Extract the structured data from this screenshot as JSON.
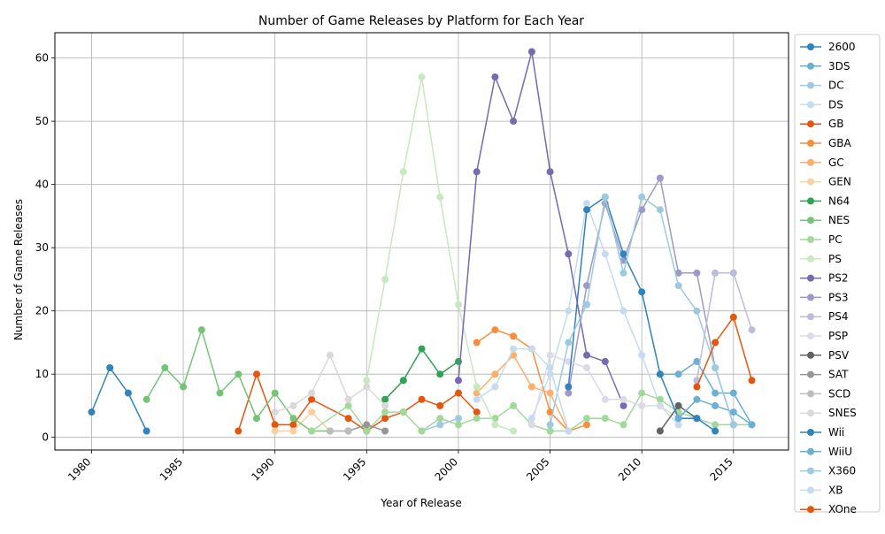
{
  "chart_data": {
    "type": "line",
    "title": "Number of Game Releases by Platform for Each Year",
    "xlabel": "Year of Release",
    "ylabel": "Number of Game Releases",
    "xlim": [
      1978,
      2018
    ],
    "ylim": [
      -2,
      64
    ],
    "xticks": [
      1980,
      1985,
      1990,
      1995,
      2000,
      2005,
      2010,
      2015
    ],
    "yticks": [
      0,
      10,
      20,
      30,
      40,
      50,
      60
    ],
    "grid": true,
    "legend_position": "outside-right",
    "series": [
      {
        "name": "2600",
        "color": "#3182bd",
        "points": [
          [
            1980,
            4
          ],
          [
            1981,
            11
          ],
          [
            1982,
            7
          ],
          [
            1983,
            1
          ]
        ]
      },
      {
        "name": "3DS",
        "color": "#6baed6",
        "points": [
          [
            2011,
            10
          ],
          [
            2012,
            10
          ],
          [
            2013,
            12
          ],
          [
            2014,
            7
          ],
          [
            2015,
            7
          ],
          [
            2016,
            2
          ]
        ]
      },
      {
        "name": "DC",
        "color": "#9ecae1",
        "points": [
          [
            1998,
            1
          ],
          [
            1999,
            2
          ],
          [
            2000,
            3
          ]
        ]
      },
      {
        "name": "DS",
        "color": "#c6dbef",
        "points": [
          [
            2004,
            3
          ],
          [
            2005,
            10
          ],
          [
            2006,
            20
          ],
          [
            2007,
            37
          ],
          [
            2008,
            29
          ],
          [
            2009,
            20
          ],
          [
            2010,
            13
          ],
          [
            2011,
            5
          ],
          [
            2012,
            2
          ]
        ]
      },
      {
        "name": "GB",
        "color": "#e6550d",
        "points": [
          [
            1988,
            1
          ],
          [
            1989,
            10
          ],
          [
            1990,
            2
          ],
          [
            1991,
            2
          ],
          [
            1992,
            6
          ],
          [
            1994,
            3
          ],
          [
            1995,
            1
          ],
          [
            1996,
            3
          ],
          [
            1997,
            4
          ],
          [
            1998,
            6
          ],
          [
            1999,
            5
          ],
          [
            2000,
            7
          ],
          [
            2001,
            4
          ]
        ]
      },
      {
        "name": "GBA",
        "color": "#fd8d3c",
        "points": [
          [
            2001,
            15
          ],
          [
            2002,
            17
          ],
          [
            2003,
            16
          ],
          [
            2004,
            14
          ],
          [
            2005,
            4
          ],
          [
            2006,
            1
          ],
          [
            2007,
            2
          ]
        ]
      },
      {
        "name": "GC",
        "color": "#fdae6b",
        "points": [
          [
            2001,
            7
          ],
          [
            2002,
            10
          ],
          [
            2003,
            13
          ],
          [
            2004,
            8
          ],
          [
            2005,
            7
          ],
          [
            2006,
            1
          ]
        ]
      },
      {
        "name": "GEN",
        "color": "#fdd0a2",
        "points": [
          [
            1990,
            1
          ],
          [
            1991,
            1
          ],
          [
            1992,
            4
          ],
          [
            1993,
            1
          ],
          [
            1994,
            1
          ]
        ]
      },
      {
        "name": "N64",
        "color": "#31a354",
        "points": [
          [
            1996,
            6
          ],
          [
            1997,
            9
          ],
          [
            1998,
            14
          ],
          [
            1999,
            10
          ],
          [
            2000,
            12
          ]
        ]
      },
      {
        "name": "NES",
        "color": "#74c476",
        "points": [
          [
            1983,
            6
          ],
          [
            1984,
            11
          ],
          [
            1985,
            8
          ],
          [
            1986,
            17
          ],
          [
            1987,
            7
          ],
          [
            1988,
            10
          ],
          [
            1989,
            3
          ],
          [
            1990,
            7
          ],
          [
            1991,
            3
          ],
          [
            1992,
            1
          ],
          [
            1993,
            1
          ],
          [
            1994,
            1
          ]
        ]
      },
      {
        "name": "PC",
        "color": "#a1d99b",
        "points": [
          [
            1992,
            1
          ],
          [
            1994,
            5
          ],
          [
            1995,
            1
          ],
          [
            1996,
            4
          ],
          [
            1997,
            4
          ],
          [
            1998,
            1
          ],
          [
            1999,
            3
          ],
          [
            2000,
            2
          ],
          [
            2001,
            3
          ],
          [
            2002,
            3
          ],
          [
            2003,
            5
          ],
          [
            2004,
            2
          ],
          [
            2005,
            1
          ],
          [
            2006,
            1
          ],
          [
            2007,
            3
          ],
          [
            2008,
            3
          ],
          [
            2009,
            2
          ],
          [
            2010,
            7
          ],
          [
            2011,
            6
          ],
          [
            2012,
            4
          ],
          [
            2013,
            3
          ],
          [
            2014,
            2
          ],
          [
            2015,
            2
          ],
          [
            2016,
            2
          ]
        ]
      },
      {
        "name": "PS",
        "color": "#c7e9c0",
        "points": [
          [
            1995,
            9
          ],
          [
            1996,
            25
          ],
          [
            1997,
            42
          ],
          [
            1998,
            57
          ],
          [
            1999,
            38
          ],
          [
            2000,
            21
          ],
          [
            2001,
            8
          ],
          [
            2002,
            2
          ],
          [
            2003,
            1
          ]
        ]
      },
      {
        "name": "PS2",
        "color": "#756bb1",
        "points": [
          [
            2000,
            9
          ],
          [
            2001,
            42
          ],
          [
            2002,
            57
          ],
          [
            2003,
            50
          ],
          [
            2004,
            61
          ],
          [
            2005,
            42
          ],
          [
            2006,
            29
          ],
          [
            2007,
            13
          ],
          [
            2008,
            12
          ],
          [
            2009,
            5
          ]
        ]
      },
      {
        "name": "PS3",
        "color": "#9e9ac8",
        "points": [
          [
            2006,
            7
          ],
          [
            2007,
            24
          ],
          [
            2008,
            37
          ],
          [
            2009,
            28
          ],
          [
            2010,
            36
          ],
          [
            2011,
            41
          ],
          [
            2012,
            26
          ],
          [
            2013,
            26
          ],
          [
            2014,
            11
          ],
          [
            2015,
            2
          ]
        ]
      },
      {
        "name": "PS4",
        "color": "#bcbddc",
        "points": [
          [
            2013,
            9
          ],
          [
            2014,
            26
          ],
          [
            2015,
            26
          ],
          [
            2016,
            17
          ]
        ]
      },
      {
        "name": "PSP",
        "color": "#dadaeb",
        "points": [
          [
            2004,
            2
          ],
          [
            2005,
            13
          ],
          [
            2006,
            12
          ],
          [
            2007,
            11
          ],
          [
            2008,
            6
          ],
          [
            2009,
            6
          ],
          [
            2010,
            5
          ],
          [
            2011,
            5
          ],
          [
            2012,
            3
          ]
        ]
      },
      {
        "name": "PSV",
        "color": "#636363",
        "points": [
          [
            2011,
            1
          ],
          [
            2012,
            5
          ],
          [
            2013,
            3
          ]
        ]
      },
      {
        "name": "SAT",
        "color": "#969696",
        "points": [
          [
            1994,
            1
          ],
          [
            1995,
            2
          ],
          [
            1996,
            1
          ]
        ]
      },
      {
        "name": "SCD",
        "color": "#bdbdbd",
        "points": [
          [
            1993,
            1
          ],
          [
            1994,
            1
          ]
        ]
      },
      {
        "name": "SNES",
        "color": "#d9d9d9",
        "points": [
          [
            1990,
            4
          ],
          [
            1991,
            5
          ],
          [
            1992,
            7
          ],
          [
            1993,
            13
          ],
          [
            1994,
            6
          ],
          [
            1995,
            8
          ],
          [
            1996,
            5
          ]
        ]
      },
      {
        "name": "Wii",
        "color": "#3182bd",
        "points": [
          [
            2006,
            8
          ],
          [
            2007,
            36
          ],
          [
            2008,
            38
          ],
          [
            2009,
            29
          ],
          [
            2010,
            23
          ],
          [
            2011,
            10
          ],
          [
            2012,
            3
          ],
          [
            2013,
            3
          ],
          [
            2014,
            1
          ]
        ]
      },
      {
        "name": "WiiU",
        "color": "#6baed6",
        "points": [
          [
            2012,
            3
          ],
          [
            2013,
            6
          ],
          [
            2014,
            5
          ],
          [
            2015,
            4
          ],
          [
            2016,
            2
          ]
        ]
      },
      {
        "name": "X360",
        "color": "#9ecae1",
        "points": [
          [
            2005,
            2
          ],
          [
            2006,
            15
          ],
          [
            2007,
            21
          ],
          [
            2008,
            38
          ],
          [
            2009,
            26
          ],
          [
            2010,
            38
          ],
          [
            2011,
            36
          ],
          [
            2012,
            24
          ],
          [
            2013,
            20
          ],
          [
            2014,
            11
          ],
          [
            2015,
            2
          ]
        ]
      },
      {
        "name": "XB",
        "color": "#c6dbef",
        "points": [
          [
            2001,
            6
          ],
          [
            2002,
            8
          ],
          [
            2003,
            14
          ],
          [
            2004,
            14
          ],
          [
            2005,
            11
          ],
          [
            2006,
            1
          ]
        ]
      },
      {
        "name": "XOne",
        "color": "#e6550d",
        "points": [
          [
            2013,
            8
          ],
          [
            2014,
            15
          ],
          [
            2015,
            19
          ],
          [
            2016,
            9
          ]
        ]
      }
    ]
  }
}
